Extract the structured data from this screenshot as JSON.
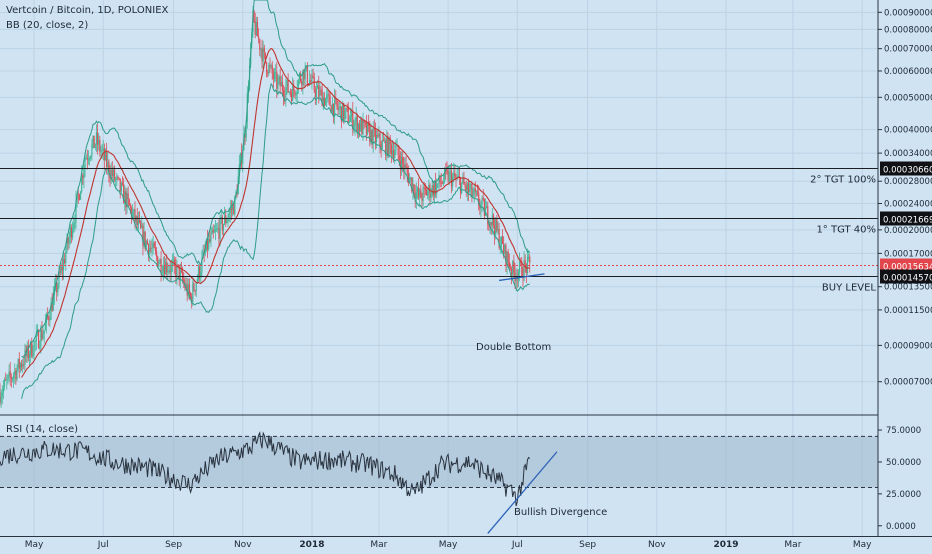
{
  "header": {
    "symbol_line": "Vertcoin / Bitcoin, 1D, POLONIEX",
    "bb_indicator": "BB (20, close, 2)",
    "rsi_indicator": "RSI (14, close)"
  },
  "colors": {
    "background": "#cfe3f3",
    "candle_up": "#45b89a",
    "candle_down": "#d9515a",
    "bb_band": "#2f9c88",
    "bb_basis": "#c0352f",
    "rsi_line": "#2a3440",
    "annotation": "#2c62b8",
    "current_price": "#e2454b"
  },
  "price_axis": {
    "scale": "log",
    "ylim": [
      5.6e-05,
      0.00098
    ],
    "tick_labels": [
      "0.00090000",
      "0.00080000",
      "0.00070000",
      "0.00060000",
      "0.00050000",
      "0.00040000",
      "0.00034000",
      "0.00028000",
      "0.00024000",
      "0.00020000",
      "0.00017000",
      "0.00013500",
      "0.00011500",
      "0.00009000",
      "0.00007000"
    ],
    "tick_values": [
      0.0009,
      0.0008,
      0.0007,
      0.0006,
      0.0005,
      0.0004,
      0.00034,
      0.00028,
      0.00024,
      0.0002,
      0.00017,
      0.000135,
      0.000115,
      9e-05,
      7e-05
    ]
  },
  "rsi_axis": {
    "ylim": [
      -8,
      86
    ],
    "tick_labels": [
      "75.0000",
      "50.0000",
      "25.0000",
      "0.0000"
    ],
    "tick_values": [
      75,
      50,
      25,
      0
    ],
    "upper_band": 70,
    "lower_band": 30
  },
  "time_axis": {
    "labels": [
      "May",
      "Jul",
      "Sep",
      "Nov",
      "2018",
      "Mar",
      "May",
      "Jul",
      "Sep",
      "Nov",
      "2019",
      "Mar",
      "May"
    ],
    "dates": [
      "2017-05-01",
      "2017-07-01",
      "2017-09-01",
      "2017-11-01",
      "2018-01-01",
      "2018-03-01",
      "2018-05-01",
      "2018-07-01",
      "2018-09-01",
      "2018-11-01",
      "2019-01-01",
      "2019-03-01",
      "2019-05-01"
    ],
    "bold": [
      "2018",
      "2019"
    ],
    "xlim": [
      "2017-04-01",
      "2019-05-15"
    ]
  },
  "levels": [
    {
      "value": "0.00030660",
      "price": 0.0003066,
      "label": "2° TGT 100%",
      "style": "dark"
    },
    {
      "value": "0.00021669",
      "price": 0.00021669,
      "label": "1° TGT 40%",
      "style": "dark"
    },
    {
      "value": "0.00015634",
      "price": 0.00015634,
      "label": "",
      "style": "current"
    },
    {
      "value": "0.00014570",
      "price": 0.0001457,
      "label": "BUY LEVEL",
      "style": "dark"
    }
  ],
  "annotations": {
    "double_bottom": "Double Bottom",
    "bullish_divergence": "Bullish Divergence"
  },
  "chart_data": {
    "type": "candlestick",
    "title": "Vertcoin / Bitcoin, 1D, POLONIEX",
    "x_unit": "date",
    "y_scale": "log",
    "anchors": {
      "dates": [
        "2017-04-01",
        "2017-04-20",
        "2017-05-10",
        "2017-05-25",
        "2017-06-08",
        "2017-06-15",
        "2017-06-25",
        "2017-07-05",
        "2017-07-20",
        "2017-08-05",
        "2017-08-20",
        "2017-09-05",
        "2017-09-16",
        "2017-10-01",
        "2017-10-15",
        "2017-10-25",
        "2017-11-03",
        "2017-11-10",
        "2017-11-20",
        "2017-12-01",
        "2017-12-15",
        "2017-12-25",
        "2018-01-05",
        "2018-01-20",
        "2018-02-05",
        "2018-02-20",
        "2018-03-05",
        "2018-03-15",
        "2018-03-25",
        "2018-04-05",
        "2018-04-20",
        "2018-05-01",
        "2018-05-10",
        "2018-05-25",
        "2018-06-10",
        "2018-06-20",
        "2018-06-28",
        "2018-07-05",
        "2018-07-12"
      ],
      "close": [
        6.5e-05,
        8e-05,
        0.0001,
        0.00015,
        0.00024,
        0.00033,
        0.00037,
        0.00031,
        0.00025,
        0.00019,
        0.00016,
        0.00015,
        0.000125,
        0.00018,
        0.00021,
        0.00024,
        0.0004,
        0.00085,
        0.00065,
        0.00055,
        0.00052,
        0.0006,
        0.00052,
        0.00047,
        0.00043,
        0.00039,
        0.00036,
        0.00035,
        0.0003,
        0.00025,
        0.00027,
        0.00029,
        0.00028,
        0.00025,
        0.00021,
        0.00017,
        0.000148,
        0.000153,
        0.000156
      ]
    },
    "overlays": [
      "Bollinger Bands (20, close, 2)"
    ],
    "rsi": {
      "name": "RSI (14, close)",
      "anchors": {
        "dates": [
          "2017-04-01",
          "2017-05-15",
          "2017-06-15",
          "2017-07-10",
          "2017-08-10",
          "2017-09-15",
          "2017-10-10",
          "2017-11-05",
          "2017-11-20",
          "2017-12-20",
          "2018-01-20",
          "2018-02-20",
          "2018-03-15",
          "2018-04-01",
          "2018-04-25",
          "2018-05-20",
          "2018-06-10",
          "2018-06-25",
          "2018-07-01",
          "2018-07-12"
        ],
        "values": [
          55,
          60,
          58,
          50,
          45,
          32,
          52,
          60,
          68,
          50,
          52,
          48,
          40,
          25,
          48,
          50,
          38,
          28,
          22,
          52
        ]
      }
    }
  }
}
